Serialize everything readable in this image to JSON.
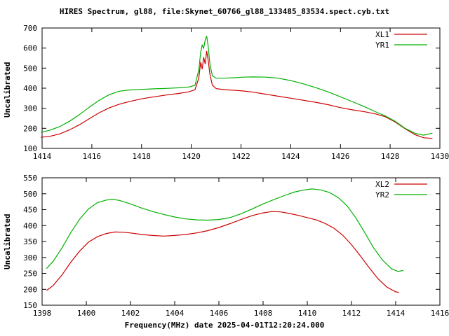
{
  "title": "HIRES Spectrum, gl88, file:Skynet_60766_gl88_133485_83534.spect.cyb.txt",
  "xlabel": "Frequency(MHz) date 2025-04-01T12:20:24.000",
  "colors": {
    "red": "#cc0000",
    "green": "#00b000",
    "axis": "#000000",
    "background": "#ffffff"
  },
  "chart_data": [
    {
      "type": "line",
      "ylabel": "Uncalibrated",
      "xlim": [
        1414,
        1430
      ],
      "ylim": [
        100,
        700
      ],
      "xticks": [
        1414,
        1416,
        1418,
        1420,
        1422,
        1424,
        1426,
        1428,
        1430
      ],
      "yticks": [
        100,
        200,
        300,
        400,
        500,
        600,
        700
      ],
      "legend_position": "top-right",
      "grid": false,
      "series": [
        {
          "name": "XL1",
          "color": "#cc0000",
          "x": [
            1413.95,
            1414.3,
            1414.7,
            1415.1,
            1415.5,
            1415.9,
            1416.3,
            1416.7,
            1417.1,
            1417.5,
            1418.0,
            1418.5,
            1419.0,
            1419.5,
            1419.9,
            1420.15,
            1420.3,
            1420.38,
            1420.44,
            1420.5,
            1420.56,
            1420.62,
            1420.68,
            1420.75,
            1420.85,
            1421.0,
            1421.3,
            1421.7,
            1422.1,
            1422.5,
            1423.0,
            1423.5,
            1424.0,
            1424.5,
            1425.0,
            1425.5,
            1426.0,
            1426.5,
            1427.0,
            1427.4,
            1427.8,
            1428.2,
            1428.6,
            1429.0,
            1429.35,
            1429.7
          ],
          "y": [
            155,
            160,
            172,
            192,
            218,
            248,
            278,
            302,
            320,
            333,
            347,
            357,
            366,
            374,
            382,
            392,
            450,
            530,
            495,
            555,
            520,
            585,
            540,
            470,
            415,
            398,
            393,
            390,
            386,
            380,
            370,
            360,
            350,
            340,
            330,
            318,
            303,
            292,
            282,
            272,
            258,
            232,
            198,
            168,
            153,
            150
          ]
        },
        {
          "name": "YR1",
          "color": "#00b000",
          "x": [
            1413.95,
            1414.3,
            1414.7,
            1415.1,
            1415.5,
            1415.9,
            1416.3,
            1416.7,
            1417.1,
            1417.5,
            1418.0,
            1418.5,
            1419.0,
            1419.5,
            1419.9,
            1420.15,
            1420.3,
            1420.38,
            1420.44,
            1420.5,
            1420.56,
            1420.62,
            1420.68,
            1420.75,
            1420.85,
            1421.0,
            1421.3,
            1421.7,
            1422.1,
            1422.5,
            1423.0,
            1423.5,
            1424.0,
            1424.5,
            1425.0,
            1425.5,
            1426.0,
            1426.5,
            1427.0,
            1427.4,
            1427.8,
            1428.2,
            1428.6,
            1429.0,
            1429.35,
            1429.7
          ],
          "y": [
            180,
            190,
            208,
            235,
            268,
            305,
            340,
            368,
            385,
            391,
            394,
            397,
            399,
            402,
            406,
            414,
            490,
            580,
            615,
            600,
            640,
            660,
            610,
            520,
            462,
            450,
            450,
            452,
            455,
            456,
            455,
            450,
            438,
            422,
            403,
            382,
            357,
            332,
            306,
            283,
            262,
            235,
            200,
            175,
            166,
            176
          ]
        }
      ]
    },
    {
      "type": "line",
      "ylabel": "Uncalibrated",
      "xlim": [
        1398,
        1416
      ],
      "ylim": [
        150,
        550
      ],
      "xticks": [
        1398,
        1400,
        1402,
        1404,
        1406,
        1408,
        1410,
        1412,
        1414,
        1416
      ],
      "yticks": [
        150,
        200,
        250,
        300,
        350,
        400,
        450,
        500,
        550
      ],
      "legend_position": "top-right",
      "grid": false,
      "series": [
        {
          "name": "XL2",
          "color": "#cc0000",
          "x": [
            1398.2,
            1398.5,
            1398.9,
            1399.3,
            1399.7,
            1400.1,
            1400.5,
            1400.9,
            1401.3,
            1401.7,
            1402.1,
            1402.5,
            1403.0,
            1403.5,
            1404.0,
            1404.5,
            1405.0,
            1405.5,
            1406.0,
            1406.5,
            1407.0,
            1407.5,
            1408.0,
            1408.4,
            1408.8,
            1409.2,
            1409.6,
            1410.0,
            1410.4,
            1410.8,
            1411.2,
            1411.6,
            1412.0,
            1412.4,
            1412.8,
            1413.2,
            1413.6,
            1414.0,
            1414.15
          ],
          "y": [
            196,
            212,
            245,
            285,
            320,
            348,
            365,
            375,
            380,
            379,
            376,
            372,
            369,
            367,
            369,
            372,
            377,
            384,
            394,
            406,
            419,
            431,
            440,
            444,
            443,
            438,
            432,
            425,
            418,
            407,
            392,
            370,
            340,
            305,
            268,
            233,
            207,
            192,
            190
          ]
        },
        {
          "name": "YR2",
          "color": "#00b000",
          "x": [
            1398.2,
            1398.5,
            1398.9,
            1399.3,
            1399.7,
            1400.1,
            1400.5,
            1400.9,
            1401.2,
            1401.5,
            1402.0,
            1402.5,
            1403.0,
            1403.5,
            1404.0,
            1404.5,
            1405.0,
            1405.5,
            1406.0,
            1406.5,
            1407.0,
            1407.5,
            1408.0,
            1408.5,
            1409.0,
            1409.4,
            1409.8,
            1410.2,
            1410.6,
            1411.0,
            1411.4,
            1411.8,
            1412.2,
            1412.6,
            1413.0,
            1413.4,
            1413.8,
            1414.1,
            1414.35
          ],
          "y": [
            265,
            288,
            330,
            378,
            420,
            452,
            472,
            480,
            482,
            479,
            468,
            455,
            444,
            435,
            427,
            421,
            418,
            417,
            419,
            425,
            437,
            452,
            468,
            482,
            495,
            505,
            511,
            515,
            512,
            504,
            488,
            462,
            424,
            378,
            330,
            292,
            265,
            256,
            259
          ]
        }
      ]
    }
  ]
}
